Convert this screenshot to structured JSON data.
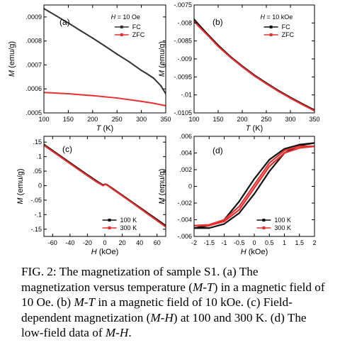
{
  "chart_data": [
    {
      "id": "a",
      "type": "line",
      "panel_label": "(a)",
      "annotation": "H = 10 Oe",
      "xlabel": "T (K)",
      "ylabel": "M (emu/g)",
      "xlim": [
        100,
        350
      ],
      "ylim": [
        0.0005,
        0.00095
      ],
      "xticks": [
        100,
        150,
        200,
        250,
        300,
        350
      ],
      "yticks": [
        0.0005,
        0.0006,
        0.0007,
        0.0008,
        0.0009
      ],
      "grid": false,
      "legend_position": "top-right",
      "series": [
        {
          "name": "FC",
          "color": "#333333",
          "x": [
            100,
            125,
            150,
            175,
            200,
            225,
            250,
            275,
            300,
            310,
            325,
            340,
            350
          ],
          "y": [
            0.000935,
            0.000905,
            0.000875,
            0.000843,
            0.000812,
            0.000779,
            0.000745,
            0.000713,
            0.000677,
            0.000665,
            0.000645,
            0.000613,
            0.00058
          ]
        },
        {
          "name": "ZFC",
          "color": "#e83030",
          "x": [
            100,
            150,
            200,
            250,
            300,
            325,
            350
          ],
          "y": [
            0.000585,
            0.00058,
            0.000572,
            0.000562,
            0.000548,
            0.00054,
            0.00053
          ]
        }
      ]
    },
    {
      "id": "b",
      "type": "line",
      "panel_label": "(b)",
      "annotation": "H = 10 kOe",
      "xlabel": "T (K)",
      "ylabel": "M (emu/g)",
      "xlim": [
        100,
        350
      ],
      "ylim": [
        -0.0105,
        -0.0075
      ],
      "xticks": [
        100,
        150,
        200,
        250,
        300,
        350
      ],
      "yticks": [
        -0.0075,
        -0.008,
        -0.0085,
        -0.009,
        -0.0095,
        -0.01,
        -0.0105
      ],
      "grid": false,
      "legend_position": "top-right",
      "series": [
        {
          "name": "FC",
          "color": "#111111",
          "x": [
            100,
            110,
            125,
            150,
            175,
            200,
            225,
            250,
            275,
            300,
            325,
            350
          ],
          "y": [
            -0.0079,
            -0.00805,
            -0.00827,
            -0.00862,
            -0.00893,
            -0.0092,
            -0.00945,
            -0.00967,
            -0.00988,
            -0.01007,
            -0.01025,
            -0.01042
          ]
        },
        {
          "name": "ZFC",
          "color": "#e83030",
          "x": [
            100,
            110,
            125,
            150,
            175,
            200,
            225,
            250,
            275,
            300,
            325,
            350
          ],
          "y": [
            -0.00795,
            -0.0081,
            -0.0083,
            -0.00865,
            -0.00895,
            -0.00922,
            -0.00947,
            -0.00969,
            -0.0099,
            -0.01009,
            -0.01027,
            -0.01044
          ]
        }
      ]
    },
    {
      "id": "c",
      "type": "line",
      "panel_label": "(c)",
      "xlabel": "H (kOe)",
      "ylabel": "M (emu/g)",
      "xlim": [
        -70,
        70
      ],
      "ylim": [
        -0.175,
        0.17
      ],
      "xticks": [
        -60,
        -40,
        -20,
        0,
        20,
        40,
        60
      ],
      "yticks": [
        0.15,
        0.1,
        0.05,
        0,
        -0.05,
        -0.1,
        -0.15
      ],
      "grid": false,
      "legend_position": "bottom-left",
      "series": [
        {
          "name": "100 K",
          "color": "#111111",
          "x": [
            -70,
            -50,
            -30,
            -10,
            -2,
            0,
            2,
            10,
            30,
            50,
            70
          ],
          "y": [
            0.142,
            0.1,
            0.058,
            0.017,
            0.002,
            0.005,
            0.004,
            -0.012,
            -0.054,
            -0.096,
            -0.138
          ]
        },
        {
          "name": "300 K",
          "color": "#e83030",
          "x": [
            -70,
            -50,
            -30,
            -10,
            -2,
            0,
            2,
            10,
            30,
            50,
            70
          ],
          "y": [
            0.139,
            0.097,
            0.055,
            0.014,
            0.0,
            0.004,
            0.003,
            -0.014,
            -0.056,
            -0.099,
            -0.142
          ]
        }
      ]
    },
    {
      "id": "d",
      "type": "line",
      "panel_label": "(d)",
      "xlabel": "H (kOe)",
      "ylabel": "M (emu/g)",
      "xlim": [
        -2,
        2
      ],
      "ylim": [
        -0.006,
        0.006
      ],
      "xticks": [
        -2,
        -1.5,
        -1,
        -0.5,
        0,
        0.5,
        1,
        1.5,
        2
      ],
      "yticks": [
        0.006,
        0.004,
        0.002,
        0,
        -0.002,
        -0.004,
        -0.006
      ],
      "grid": false,
      "legend_position": "bottom-right",
      "series": [
        {
          "name": "100 K",
          "color": "#111111",
          "x": [
            -2,
            -1.5,
            -1,
            -0.5,
            0,
            0.5,
            1,
            1.5,
            2,
            1.5,
            1,
            0.5,
            0,
            -0.5,
            -1,
            -1.5,
            -2
          ],
          "y": [
            -0.005,
            -0.0047,
            -0.004,
            -0.0018,
            0.0009,
            0.0032,
            0.0045,
            0.005,
            0.0052,
            0.0049,
            0.004,
            0.0018,
            -0.0009,
            -0.0032,
            -0.0045,
            -0.005,
            -0.005
          ]
        },
        {
          "name": "300 K",
          "color": "#e83030",
          "x": [
            -2,
            -1.5,
            -1,
            -0.5,
            0,
            0.5,
            1,
            1.5,
            2,
            1.5,
            1,
            0.5,
            0,
            -0.5,
            -1,
            -1.5,
            -2
          ],
          "y": [
            -0.0047,
            -0.0047,
            -0.0042,
            -0.0028,
            -0.0002,
            0.0024,
            0.004,
            0.0046,
            0.0048,
            0.0048,
            0.0043,
            0.0028,
            0.0002,
            -0.0024,
            -0.004,
            -0.0046,
            -0.0047
          ]
        }
      ]
    }
  ],
  "caption": {
    "fig_label": "FIG. 2:",
    "parts": [
      {
        "t": " The magnetization of sample S1. (a) The magnetization versus temperature (",
        "i": false
      },
      {
        "t": "M",
        "i": true
      },
      {
        "t": "-",
        "i": false
      },
      {
        "t": "T",
        "i": true
      },
      {
        "t": ") in a magnetic field of 10 Oe. (b) ",
        "i": false
      },
      {
        "t": "M",
        "i": true
      },
      {
        "t": "-",
        "i": false
      },
      {
        "t": "T",
        "i": true
      },
      {
        "t": " in a magnetic field of 10 kOe. (c) Field-dependent magnetization (",
        "i": false
      },
      {
        "t": "M",
        "i": true
      },
      {
        "t": "-",
        "i": false
      },
      {
        "t": "H",
        "i": true
      },
      {
        "t": ") at 100 and 300 K. (d) The low-field data of ",
        "i": false
      },
      {
        "t": "M",
        "i": true
      },
      {
        "t": "-",
        "i": false
      },
      {
        "t": "H",
        "i": true
      },
      {
        "t": ".",
        "i": false
      }
    ]
  }
}
